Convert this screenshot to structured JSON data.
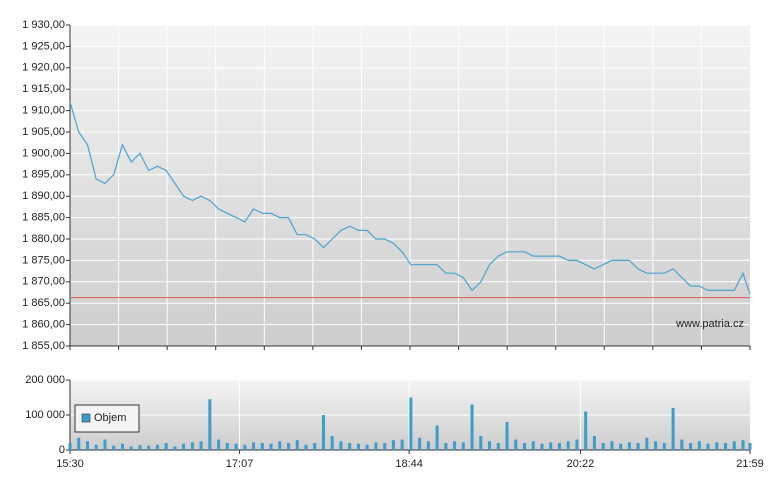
{
  "chart_data": [
    {
      "type": "line",
      "watermark": "www.patria.cz",
      "x": [
        "15:30",
        "15:35",
        "15:40",
        "15:45",
        "15:50",
        "15:55",
        "16:00",
        "16:05",
        "16:10",
        "16:15",
        "16:20",
        "16:25",
        "16:30",
        "16:35",
        "16:40",
        "16:45",
        "16:50",
        "16:55",
        "17:00",
        "17:05",
        "17:10",
        "17:15",
        "17:20",
        "17:25",
        "17:30",
        "17:35",
        "17:40",
        "17:45",
        "17:50",
        "17:55",
        "18:00",
        "18:05",
        "18:10",
        "18:15",
        "18:20",
        "18:25",
        "18:30",
        "18:35",
        "18:40",
        "18:45",
        "18:50",
        "18:55",
        "19:00",
        "19:05",
        "19:10",
        "19:15",
        "19:20",
        "19:25",
        "19:30",
        "19:35",
        "19:40",
        "19:45",
        "19:50",
        "19:55",
        "20:00",
        "20:05",
        "20:10",
        "20:15",
        "20:20",
        "20:25",
        "20:30",
        "20:35",
        "20:40",
        "20:45",
        "20:50",
        "20:55",
        "21:00",
        "21:05",
        "21:10",
        "21:15",
        "21:20",
        "21:25",
        "21:30",
        "21:35",
        "21:40",
        "21:45",
        "21:50",
        "21:55",
        "21:59"
      ],
      "series": [
        {
          "color": "#4aa3cf",
          "values": [
            1912,
            1905,
            1902,
            1894,
            1893,
            1895,
            1902,
            1898,
            1900,
            1896,
            1897,
            1896,
            1893,
            1890,
            1889,
            1890,
            1889,
            1887,
            1886,
            1885,
            1884,
            1887,
            1886,
            1886,
            1885,
            1885,
            1881,
            1881,
            1880,
            1878,
            1880,
            1882,
            1883,
            1882,
            1882,
            1880,
            1880,
            1879,
            1877,
            1874,
            1874,
            1874,
            1874,
            1872,
            1872,
            1871,
            1868,
            1870,
            1874,
            1876,
            1877,
            1877,
            1877,
            1876,
            1876,
            1876,
            1876,
            1875,
            1875,
            1874,
            1873,
            1874,
            1875,
            1875,
            1875,
            1873,
            1872,
            1872,
            1872,
            1873,
            1871,
            1869,
            1869,
            1868,
            1868,
            1868,
            1868,
            1872,
            1867
          ]
        }
      ],
      "reference": {
        "value": 1866.3,
        "color": "#e05a4f"
      },
      "xlim": [
        "15:30",
        "21:59"
      ],
      "ylim": [
        1855,
        1930
      ],
      "yticks": [
        {
          "value": 1855,
          "label": "1 855,00"
        },
        {
          "value": 1860,
          "label": "1 860,00"
        },
        {
          "value": 1865,
          "label": "1 865,00"
        },
        {
          "value": 1870,
          "label": "1 870,00"
        },
        {
          "value": 1875,
          "label": "1 875,00"
        },
        {
          "value": 1880,
          "label": "1 880,00"
        },
        {
          "value": 1885,
          "label": "1 885,00"
        },
        {
          "value": 1890,
          "label": "1 890,00"
        },
        {
          "value": 1895,
          "label": "1 895,00"
        },
        {
          "value": 1900,
          "label": "1 900,00"
        },
        {
          "value": 1905,
          "label": "1 905,00"
        },
        {
          "value": 1910,
          "label": "1 910,00"
        },
        {
          "value": 1915,
          "label": "1 915,00"
        },
        {
          "value": 1920,
          "label": "1 920,00"
        },
        {
          "value": 1925,
          "label": "1 925,00"
        },
        {
          "value": 1930,
          "label": "1 930,00"
        }
      ],
      "grid": true
    },
    {
      "type": "bar",
      "x": [
        "15:30",
        "15:35",
        "15:40",
        "15:45",
        "15:50",
        "15:55",
        "16:00",
        "16:05",
        "16:10",
        "16:15",
        "16:20",
        "16:25",
        "16:30",
        "16:35",
        "16:40",
        "16:45",
        "16:50",
        "16:55",
        "17:00",
        "17:05",
        "17:10",
        "17:15",
        "17:20",
        "17:25",
        "17:30",
        "17:35",
        "17:40",
        "17:45",
        "17:50",
        "17:55",
        "18:00",
        "18:05",
        "18:10",
        "18:15",
        "18:20",
        "18:25",
        "18:30",
        "18:35",
        "18:40",
        "18:45",
        "18:50",
        "18:55",
        "19:00",
        "19:05",
        "19:10",
        "19:15",
        "19:20",
        "19:25",
        "19:30",
        "19:35",
        "19:40",
        "19:45",
        "19:50",
        "19:55",
        "20:00",
        "20:05",
        "20:10",
        "20:15",
        "20:20",
        "20:25",
        "20:30",
        "20:35",
        "20:40",
        "20:45",
        "20:50",
        "20:55",
        "21:00",
        "21:05",
        "21:10",
        "21:15",
        "21:20",
        "21:25",
        "21:30",
        "21:35",
        "21:40",
        "21:45",
        "21:50",
        "21:55",
        "21:59"
      ],
      "series": [
        {
          "name": "Objem",
          "color": "#3d9cc9",
          "values": [
            20000,
            35000,
            25000,
            15000,
            30000,
            12000,
            18000,
            10000,
            14000,
            12000,
            15000,
            20000,
            10000,
            18000,
            22000,
            25000,
            145000,
            30000,
            20000,
            18000,
            15000,
            22000,
            20000,
            18000,
            25000,
            20000,
            28000,
            15000,
            20000,
            100000,
            40000,
            25000,
            20000,
            18000,
            15000,
            22000,
            20000,
            28000,
            30000,
            150000,
            35000,
            25000,
            70000,
            20000,
            25000,
            22000,
            130000,
            40000,
            25000,
            20000,
            80000,
            30000,
            20000,
            25000,
            18000,
            22000,
            20000,
            25000,
            30000,
            110000,
            40000,
            20000,
            25000,
            18000,
            22000,
            20000,
            35000,
            25000,
            20000,
            120000,
            30000,
            20000,
            25000,
            18000,
            22000,
            20000,
            25000,
            28000,
            20000
          ]
        }
      ],
      "xlim": [
        "15:30",
        "21:59"
      ],
      "xticks": [
        "15:30",
        "17:07",
        "18:44",
        "20:22",
        "21:59"
      ],
      "ylim": [
        0,
        200000
      ],
      "yticks": [
        0,
        {
          "value": 100000,
          "label": "100 000"
        },
        {
          "value": 200000,
          "label": "200 000"
        }
      ],
      "grid": true,
      "legend": "bottom-left"
    }
  ]
}
